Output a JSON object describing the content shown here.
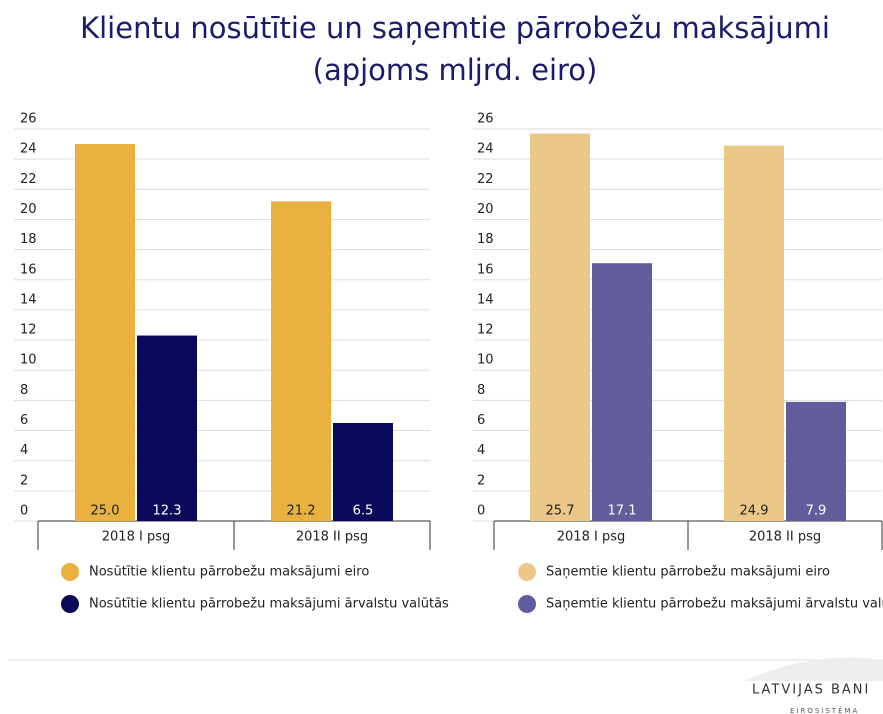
{
  "title": [
    "Klientu nosūtītie un saņemtie pārrobežu maksājumi",
    "(apjoms mljrd. eiro)"
  ],
  "chart_data": [
    {
      "type": "bar",
      "categories": [
        "2018 I psg",
        "2018 II psg"
      ],
      "series": [
        {
          "name": "Nosūtītie klientu pārrobežu maksājumi eiro",
          "color": "#e8b140",
          "values": [
            25.0,
            21.2
          ],
          "value_labels": [
            "25.0",
            "21.2"
          ]
        },
        {
          "name": "Nosūtītie klientu pārrobežu maksājumi ārvalstu valūtās",
          "color": "#0b0a5a",
          "values": [
            12.3,
            6.5
          ],
          "value_labels": [
            "12.3",
            "6.5"
          ]
        }
      ],
      "ylim": [
        0,
        26
      ],
      "yticks": [
        0,
        2,
        4,
        6,
        8,
        10,
        12,
        14,
        16,
        18,
        20,
        22,
        24,
        26
      ],
      "grid": true
    },
    {
      "type": "bar",
      "categories": [
        "2018 I psg",
        "2018 II psg"
      ],
      "series": [
        {
          "name": "Saņemtie klientu pārrobežu maksājumi eiro",
          "color": "#ebc888",
          "values": [
            25.7,
            24.9
          ],
          "value_labels": [
            "25.7",
            "24.9"
          ]
        },
        {
          "name": "Saņemtie klientu pārrobežu maksājumi ārvalstu valūtās",
          "color": "#625e9e",
          "values": [
            17.1,
            7.9
          ],
          "value_labels": [
            "17.1",
            "7.9"
          ]
        }
      ],
      "ylim": [
        0,
        26
      ],
      "yticks": [
        0,
        2,
        4,
        6,
        8,
        10,
        12,
        14,
        16,
        18,
        20,
        22,
        24,
        26
      ],
      "grid": true
    }
  ],
  "footer": {
    "logo": "LATVIJAS BANI",
    "sub": "EIROSISTĒMA"
  }
}
